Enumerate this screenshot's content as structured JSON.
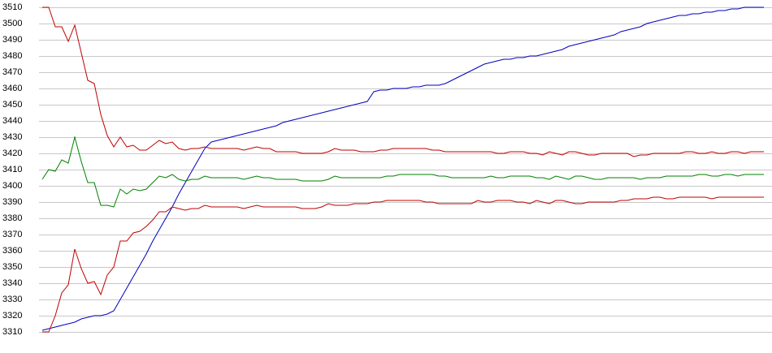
{
  "chart_data": {
    "type": "line",
    "ylim": [
      3310,
      3510
    ],
    "yticks": [
      3310,
      3320,
      3330,
      3340,
      3350,
      3360,
      3370,
      3380,
      3390,
      3400,
      3410,
      3420,
      3430,
      3440,
      3450,
      3460,
      3470,
      3480,
      3490,
      3500,
      3510
    ],
    "grid": true,
    "series": [
      {
        "color": "#0000c0",
        "values": [
          3311,
          3312,
          3313,
          3314,
          3315,
          3316,
          3318,
          3319,
          3320,
          3320,
          3321,
          3323,
          3330,
          3337,
          3344,
          3351,
          3358,
          3366,
          3373,
          3380,
          3387,
          3395,
          3402,
          3409,
          3416,
          3423,
          3427,
          3428,
          3429,
          3430,
          3431,
          3432,
          3433,
          3434,
          3435,
          3436,
          3437,
          3439,
          3440,
          3441,
          3442,
          3443,
          3444,
          3445,
          3446,
          3447,
          3448,
          3449,
          3450,
          3451,
          3452,
          3458,
          3459,
          3459,
          3460,
          3460,
          3460,
          3461,
          3461,
          3462,
          3462,
          3462,
          3463,
          3465,
          3467,
          3469,
          3471,
          3473,
          3475,
          3476,
          3477,
          3478,
          3478,
          3479,
          3479,
          3480,
          3480,
          3481,
          3482,
          3483,
          3484,
          3486,
          3487,
          3488,
          3489,
          3490,
          3491,
          3492,
          3493,
          3495,
          3496,
          3497,
          3498,
          3500,
          3501,
          3502,
          3503,
          3504,
          3505,
          3505,
          3506,
          3506,
          3507,
          3507,
          3508,
          3508,
          3509,
          3509,
          3510,
          3510,
          3510,
          3510
        ]
      },
      {
        "color": "#c00000",
        "values": [
          3510,
          3510,
          3498,
          3498,
          3489,
          3499,
          3482,
          3465,
          3463,
          3444,
          3431,
          3424,
          3430,
          3424,
          3425,
          3422,
          3422,
          3425,
          3428,
          3426,
          3427,
          3423,
          3422,
          3423,
          3423,
          3424,
          3423,
          3423,
          3423,
          3423,
          3423,
          3422,
          3423,
          3424,
          3423,
          3423,
          3421,
          3421,
          3421,
          3421,
          3420,
          3420,
          3420,
          3420,
          3421,
          3423,
          3422,
          3422,
          3422,
          3421,
          3421,
          3421,
          3422,
          3422,
          3423,
          3423,
          3423,
          3423,
          3423,
          3423,
          3422,
          3422,
          3421,
          3421,
          3421,
          3421,
          3421,
          3421,
          3421,
          3421,
          3420,
          3420,
          3421,
          3421,
          3421,
          3420,
          3420,
          3419,
          3421,
          3420,
          3419,
          3421,
          3421,
          3420,
          3419,
          3419,
          3420,
          3420,
          3420,
          3420,
          3420,
          3418,
          3419,
          3419,
          3420,
          3420,
          3420,
          3420,
          3420,
          3421,
          3421,
          3420,
          3420,
          3421,
          3420,
          3420,
          3421,
          3421,
          3420,
          3421,
          3421,
          3421
        ]
      },
      {
        "color": "#008000",
        "values": [
          3404,
          3410,
          3409,
          3416,
          3414,
          3430,
          3415,
          3402,
          3402,
          3388,
          3388,
          3387,
          3398,
          3395,
          3398,
          3397,
          3398,
          3402,
          3406,
          3405,
          3407,
          3404,
          3403,
          3404,
          3404,
          3406,
          3405,
          3405,
          3405,
          3405,
          3405,
          3404,
          3405,
          3406,
          3405,
          3405,
          3404,
          3404,
          3404,
          3404,
          3403,
          3403,
          3403,
          3403,
          3404,
          3406,
          3405,
          3405,
          3405,
          3405,
          3405,
          3405,
          3405,
          3406,
          3406,
          3407,
          3407,
          3407,
          3407,
          3407,
          3407,
          3406,
          3406,
          3405,
          3405,
          3405,
          3405,
          3405,
          3405,
          3406,
          3405,
          3405,
          3406,
          3406,
          3406,
          3406,
          3405,
          3405,
          3404,
          3406,
          3405,
          3404,
          3406,
          3406,
          3405,
          3404,
          3404,
          3405,
          3405,
          3405,
          3405,
          3405,
          3404,
          3405,
          3405,
          3405,
          3406,
          3406,
          3406,
          3406,
          3406,
          3407,
          3407,
          3406,
          3406,
          3407,
          3407,
          3406,
          3407,
          3407,
          3407,
          3407
        ]
      },
      {
        "color": "#c00000",
        "values": [
          3310,
          3310,
          3320,
          3334,
          3339,
          3361,
          3349,
          3340,
          3341,
          3333,
          3345,
          3350,
          3366,
          3366,
          3371,
          3372,
          3375,
          3379,
          3384,
          3384,
          3387,
          3386,
          3385,
          3386,
          3386,
          3388,
          3387,
          3387,
          3387,
          3387,
          3387,
          3386,
          3387,
          3388,
          3387,
          3387,
          3387,
          3387,
          3387,
          3387,
          3386,
          3386,
          3386,
          3387,
          3389,
          3388,
          3388,
          3388,
          3389,
          3389,
          3389,
          3390,
          3390,
          3391,
          3391,
          3391,
          3391,
          3391,
          3391,
          3390,
          3390,
          3389,
          3389,
          3389,
          3389,
          3389,
          3389,
          3391,
          3390,
          3390,
          3391,
          3391,
          3391,
          3390,
          3390,
          3389,
          3391,
          3390,
          3389,
          3391,
          3391,
          3390,
          3389,
          3389,
          3390,
          3390,
          3390,
          3390,
          3390,
          3391,
          3391,
          3392,
          3392,
          3392,
          3393,
          3393,
          3392,
          3392,
          3393,
          3393,
          3393,
          3393,
          3393,
          3392,
          3393,
          3393,
          3393,
          3393,
          3393,
          3393,
          3393,
          3393
        ]
      }
    ]
  }
}
